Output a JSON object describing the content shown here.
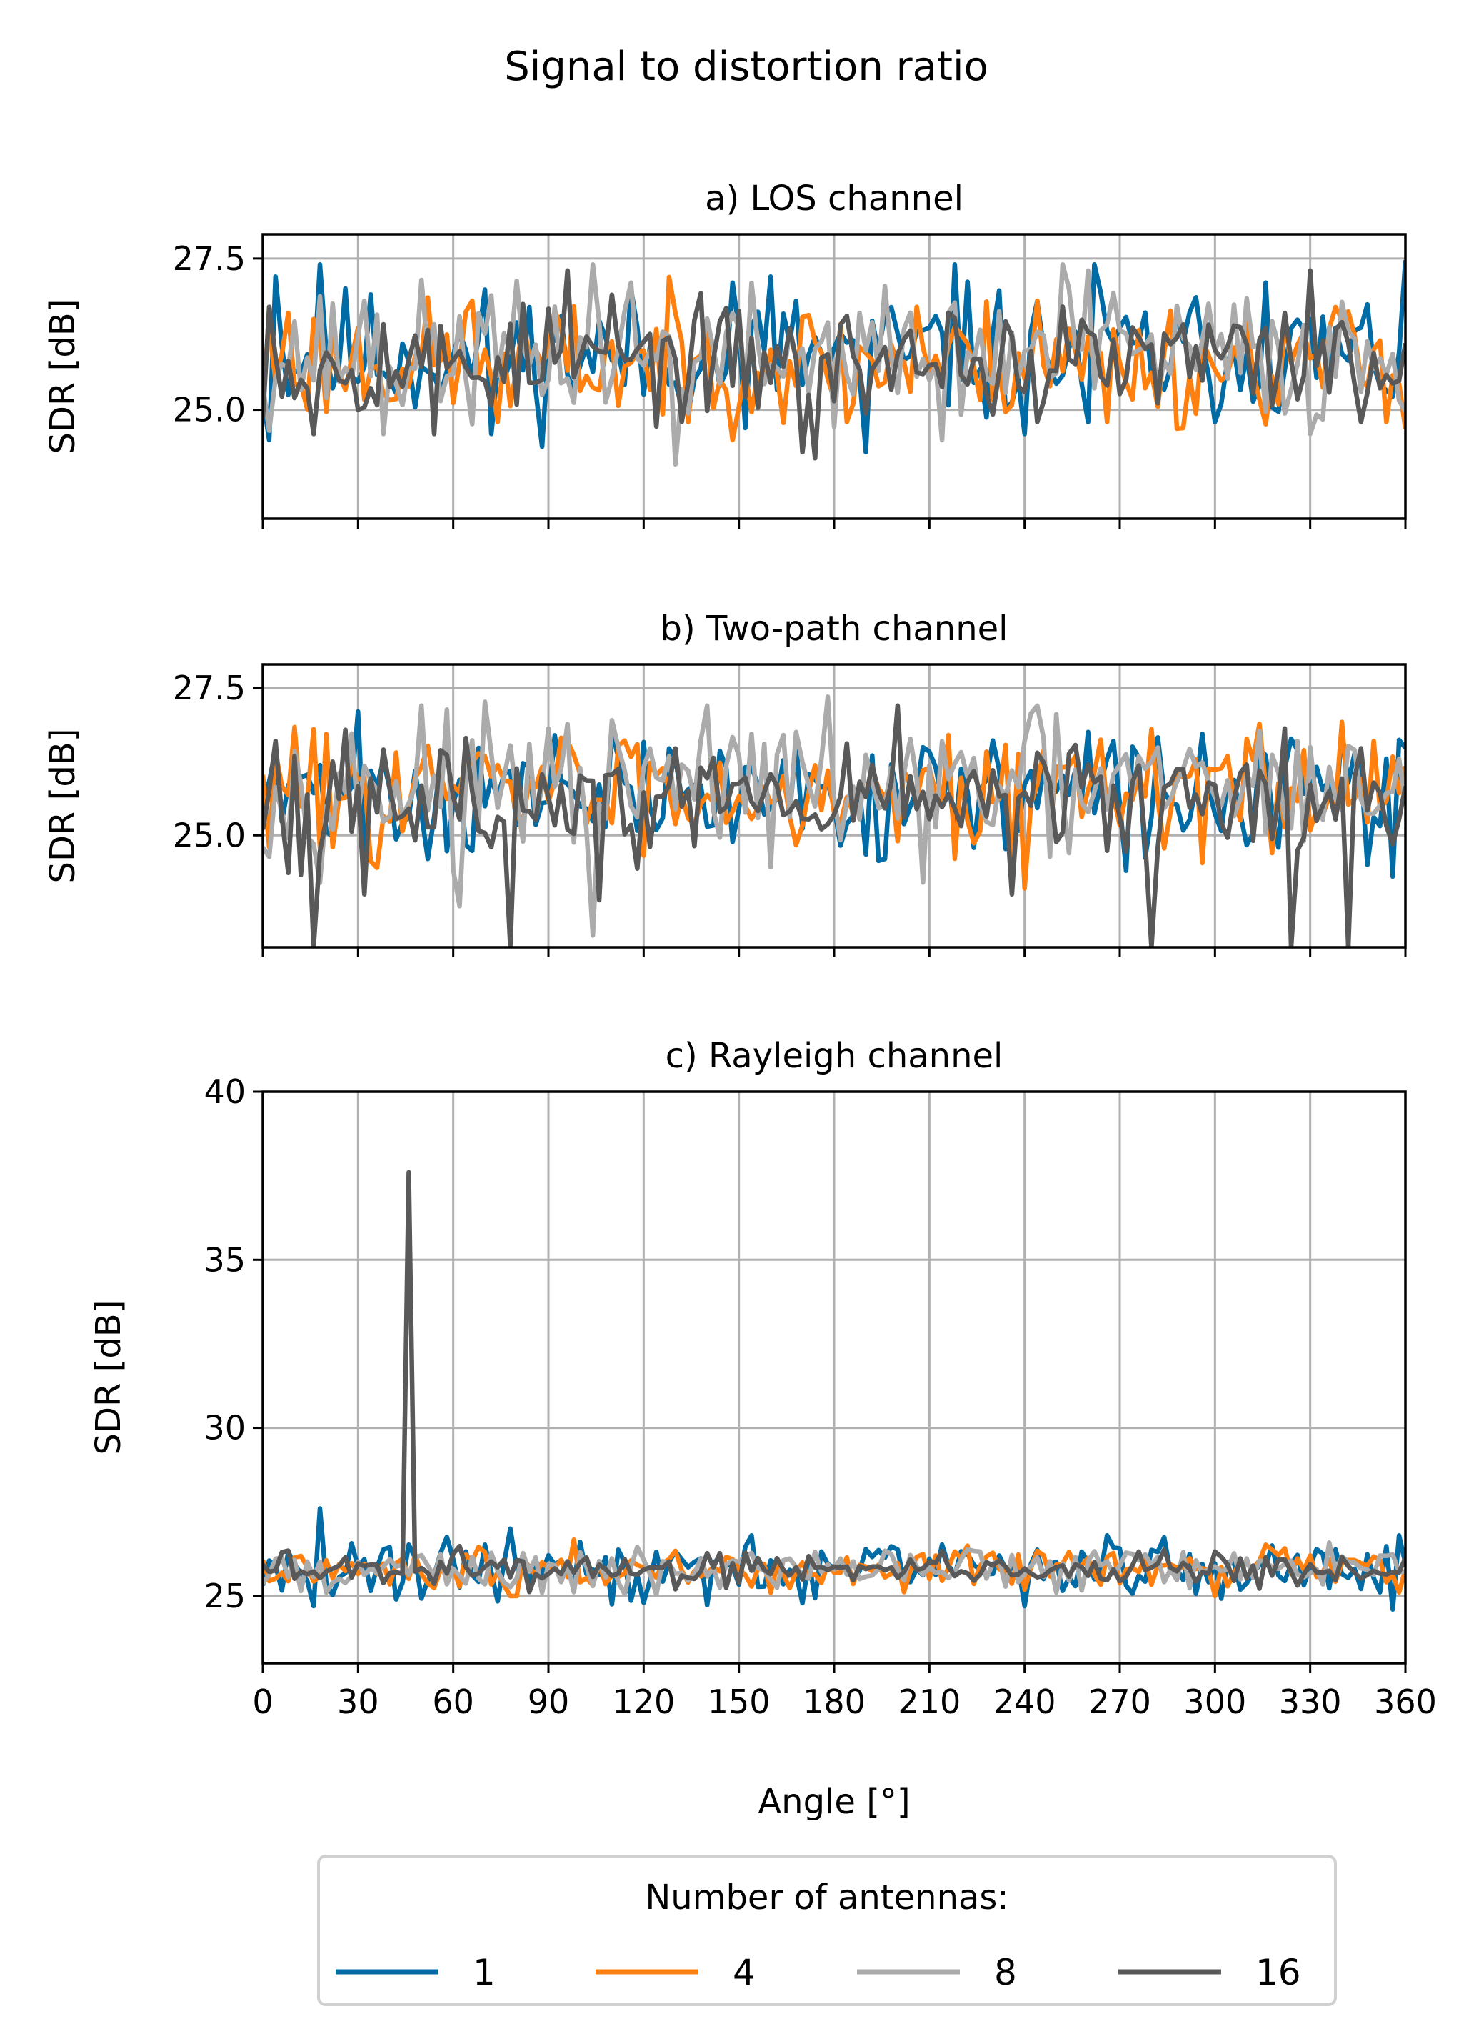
{
  "chart_data": {
    "type": "line",
    "title": "Signal to distortion ratio",
    "xlabel": "Angle [°]",
    "xlim": [
      0,
      360
    ],
    "xticks": [
      0,
      30,
      60,
      90,
      120,
      150,
      180,
      210,
      240,
      270,
      300,
      330,
      360
    ],
    "legend": {
      "title": "Number of antennas:",
      "placement": "bottom-center",
      "entries": [
        "1",
        "4",
        "8",
        "16"
      ]
    },
    "series_colors": [
      "#006ba4",
      "#ff800e",
      "#ababab",
      "#595959"
    ],
    "grid": true,
    "x_step_deg": 2,
    "panels": [
      {
        "title": "a) LOS channel",
        "ylabel": "SDR [dB]",
        "ylim": [
          23.2,
          27.9
        ],
        "yticks": [
          "25.0",
          "27.5"
        ],
        "ytick_values": [
          25.0,
          27.5
        ],
        "series": [
          {
            "name": "1",
            "peaks": [
              [
                4,
                27.2
              ],
              [
                18,
                27.4
              ],
              [
                148,
                27.1
              ],
              [
                160,
                27.2
              ],
              [
                218,
                27.4
              ],
              [
                262,
                27.4
              ],
              [
                316,
                27.1
              ]
            ],
            "troughs": [
              [
                2,
                24.5
              ],
              [
                72,
                24.6
              ],
              [
                152,
                24.7
              ],
              [
                190,
                24.3
              ],
              [
                240,
                24.6
              ],
              [
                260,
                24.8
              ]
            ],
            "mean": 25.9,
            "spread": 0.55,
            "seed": 11
          },
          {
            "name": "4",
            "peaks": [
              [
                8,
                26.6
              ],
              [
                66,
                26.8
              ],
              [
                130,
                26.6
              ],
              [
                206,
                26.7
              ],
              [
                244,
                26.8
              ],
              [
                340,
                26.5
              ]
            ],
            "troughs": [
              [
                74,
                24.8
              ],
              [
                134,
                24.8
              ],
              [
                184,
                24.8
              ],
              [
                266,
                24.8
              ],
              [
                290,
                24.7
              ],
              [
                354,
                24.8
              ]
            ],
            "mean": 25.8,
            "spread": 0.5,
            "seed": 23
          },
          {
            "name": "8",
            "peaks": [
              [
                32,
                26.8
              ],
              [
                104,
                27.4
              ],
              [
                116,
                27.1
              ],
              [
                188,
                26.6
              ],
              [
                252,
                27.4
              ],
              [
                260,
                27.3
              ]
            ],
            "troughs": [
              [
                38,
                24.6
              ],
              [
                130,
                24.1
              ],
              [
                214,
                24.5
              ],
              [
                330,
                24.6
              ]
            ],
            "mean": 25.9,
            "spread": 0.55,
            "seed": 37
          },
          {
            "name": "16",
            "peaks": [
              [
                2,
                26.7
              ],
              [
                96,
                27.3
              ],
              [
                110,
                26.9
              ],
              [
                216,
                26.6
              ],
              [
                322,
                26.6
              ],
              [
                330,
                27.3
              ]
            ],
            "troughs": [
              [
                16,
                24.6
              ],
              [
                54,
                24.6
              ],
              [
                170,
                24.3
              ],
              [
                174,
                24.2
              ],
              [
                244,
                24.8
              ],
              [
                346,
                24.8
              ]
            ],
            "mean": 25.8,
            "spread": 0.45,
            "seed": 53
          }
        ]
      },
      {
        "title": "b) Two-path channel",
        "ylabel": "SDR [dB]",
        "ylim": [
          23.1,
          27.9
        ],
        "yticks": [
          "25.0",
          "27.5"
        ],
        "ytick_values": [
          25.0,
          27.5
        ],
        "series": [
          {
            "name": "1",
            "peaks": [
              [
                30,
                27.1
              ],
              [
                168,
                26.6
              ],
              [
                268,
                26.6
              ],
              [
                354,
                26.3
              ]
            ],
            "troughs": [
              [
                52,
                24.6
              ],
              [
                272,
                24.4
              ],
              [
                356,
                24.3
              ],
              [
                196,
                24.6
              ]
            ],
            "mean": 25.7,
            "spread": 0.5,
            "seed": 71
          },
          {
            "name": "4",
            "peaks": [
              [
                16,
                26.8
              ],
              [
                96,
                26.6
              ],
              [
                216,
                26.7
              ],
              [
                280,
                26.8
              ],
              [
                350,
                26.6
              ]
            ],
            "troughs": [
              [
                2,
                24.8
              ],
              [
                22,
                24.8
              ],
              [
                240,
                24.1
              ],
              [
                318,
                24.7
              ]
            ],
            "mean": 25.8,
            "spread": 0.5,
            "seed": 83
          },
          {
            "name": "8",
            "peaks": [
              [
                50,
                27.2
              ],
              [
                140,
                27.2
              ],
              [
                164,
                26.7
              ],
              [
                244,
                27.2
              ],
              [
                326,
                26.6
              ]
            ],
            "troughs": [
              [
                62,
                23.8
              ],
              [
                104,
                23.3
              ],
              [
                208,
                24.2
              ],
              [
                254,
                24.7
              ]
            ],
            "mean": 25.8,
            "spread": 0.55,
            "seed": 97
          },
          {
            "name": "16",
            "peaks": [
              [
                4,
                26.6
              ],
              [
                200,
                27.2
              ],
              [
                244,
                26.4
              ],
              [
                310,
                26.2
              ]
            ],
            "troughs": [
              [
                16,
                23.1
              ],
              [
                32,
                24.0
              ],
              [
                78,
                23.1
              ],
              [
                106,
                23.9
              ],
              [
                236,
                24.0
              ],
              [
                280,
                23.1
              ],
              [
                324,
                23.1
              ],
              [
                342,
                23.1
              ]
            ],
            "mean": 25.6,
            "spread": 0.5,
            "seed": 113
          }
        ]
      },
      {
        "title": "c) Rayleigh channel",
        "ylabel": "SDR [dB]",
        "ylim": [
          23,
          40
        ],
        "yticks": [
          "25",
          "30",
          "35",
          "40"
        ],
        "ytick_values": [
          25,
          30,
          35,
          40
        ],
        "series": [
          {
            "name": "1",
            "peaks": [
              [
                18,
                27.6
              ],
              [
                78,
                27.0
              ],
              [
                154,
                26.8
              ],
              [
                266,
                26.8
              ],
              [
                358,
                26.8
              ]
            ],
            "troughs": [
              [
                16,
                24.7
              ],
              [
                120,
                24.8
              ],
              [
                240,
                24.7
              ],
              [
                356,
                24.6
              ]
            ],
            "mean": 25.8,
            "spread": 0.45,
            "seed": 131
          },
          {
            "name": "4",
            "peaks": [
              [
                70,
                26.3
              ],
              [
                212,
                26.2
              ],
              [
                330,
                26.2
              ]
            ],
            "troughs": [
              [
                80,
                25.0
              ],
              [
                160,
                25.1
              ],
              [
                300,
                25.0
              ]
            ],
            "mean": 25.8,
            "spread": 0.3,
            "seed": 149
          },
          {
            "name": "8",
            "peaks": [
              [
                100,
                26.3
              ],
              [
                290,
                26.3
              ]
            ],
            "troughs": [
              [
                20,
                25.1
              ],
              [
                250,
                25.1
              ]
            ],
            "mean": 25.8,
            "spread": 0.3,
            "seed": 163
          },
          {
            "name": "16",
            "peaks": [
              [
                45,
                37.6
              ],
              [
                6,
                26.3
              ],
              [
                228,
                26.0
              ]
            ],
            "troughs": [
              [
                130,
                25.2
              ]
            ],
            "mean": 25.8,
            "spread": 0.25,
            "seed": 181
          }
        ]
      }
    ]
  }
}
